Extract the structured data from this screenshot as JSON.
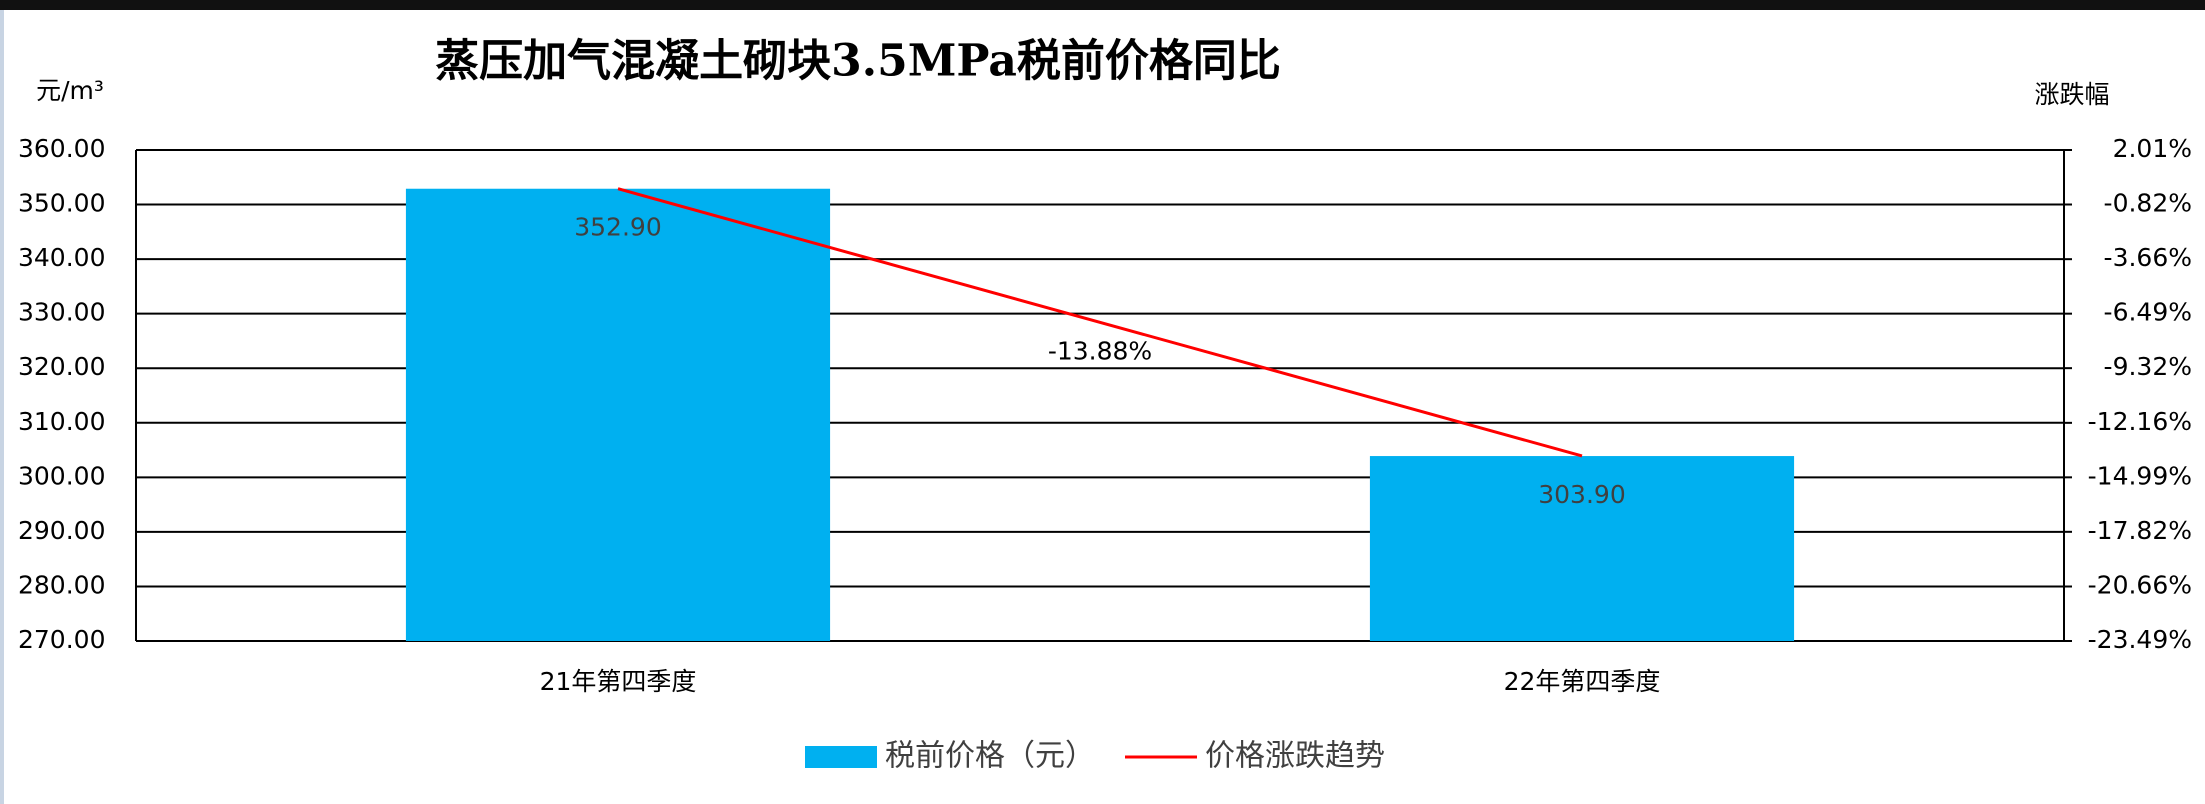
{
  "chart_data": {
    "type": "bar",
    "title": "蒸压加气混凝土砌块3.5MPa税前价格同比",
    "y_label": "元/m³",
    "y2_label": "涨跌幅",
    "categories": [
      "21年第四季度",
      "22年第四季度"
    ],
    "series": [
      {
        "name": "税前价格（元）",
        "type": "bar",
        "color": "#00b0f0",
        "values": [
          352.9,
          303.9
        ],
        "value_labels": [
          "352.90",
          "303.90"
        ]
      },
      {
        "name": "价格涨跌趋势",
        "type": "line",
        "axis": "y2",
        "color": "#ff0000",
        "values": [
          0,
          -13.88
        ],
        "value_labels": [
          null,
          "-13.88%"
        ]
      }
    ],
    "ylim": [
      270,
      360
    ],
    "yticks": [
      {
        "value": 270,
        "label": "270.00"
      },
      {
        "value": 280,
        "label": "280.00"
      },
      {
        "value": 290,
        "label": "290.00"
      },
      {
        "value": 300,
        "label": "300.00"
      },
      {
        "value": 310,
        "label": "310.00"
      },
      {
        "value": 320,
        "label": "320.00"
      },
      {
        "value": 330,
        "label": "330.00"
      },
      {
        "value": 340,
        "label": "340.00"
      },
      {
        "value": 350,
        "label": "350.00"
      },
      {
        "value": 360,
        "label": "360.00"
      }
    ],
    "y2lim": [
      -23.49,
      2.01
    ],
    "y2ticks": [
      {
        "value": -23.49,
        "label": "-23.49%"
      },
      {
        "value": -20.66,
        "label": "-20.66%"
      },
      {
        "value": -17.82,
        "label": "-17.82%"
      },
      {
        "value": -14.99,
        "label": "-14.99%"
      },
      {
        "value": -12.16,
        "label": "-12.16%"
      },
      {
        "value": -9.32,
        "label": "-9.32%"
      },
      {
        "value": -6.49,
        "label": "-6.49%"
      },
      {
        "value": -3.66,
        "label": "-3.66%"
      },
      {
        "value": -0.82,
        "label": "-0.82%"
      },
      {
        "value": 2.01,
        "label": "2.01%"
      }
    ],
    "grid": true,
    "legend": "bottom"
  }
}
